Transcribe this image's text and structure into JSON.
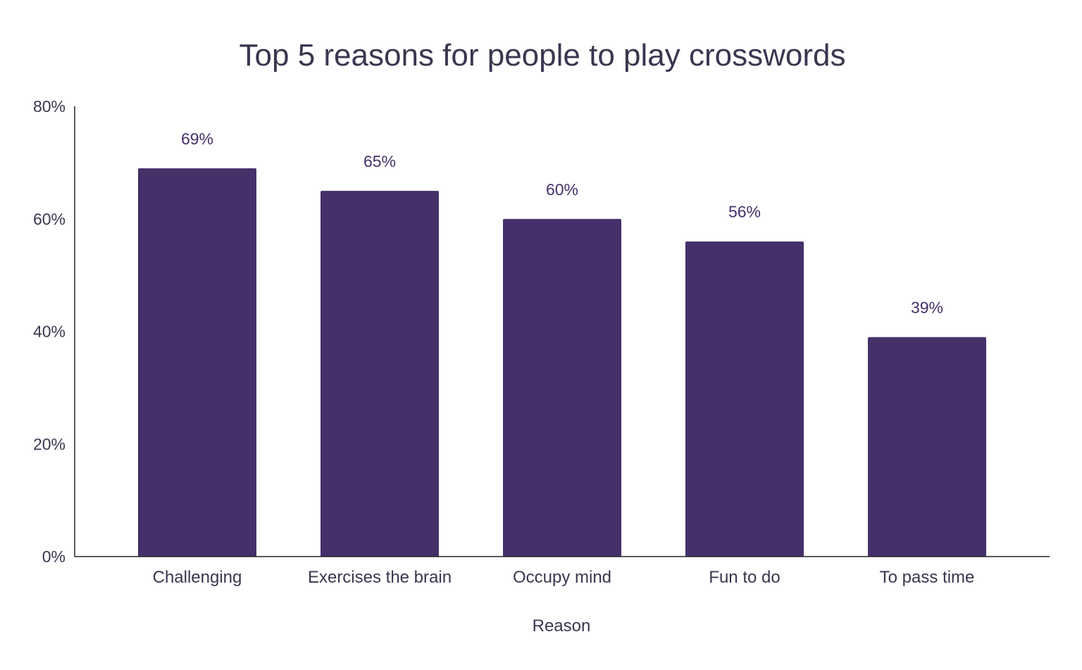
{
  "chart_data": {
    "type": "bar",
    "title": "Top 5 reasons for people to play crosswords",
    "xlabel": "Reason",
    "ylabel": "",
    "categories": [
      "Challenging",
      "Exercises the brain",
      "Occupy mind",
      "Fun to do",
      "To pass time"
    ],
    "values": [
      69,
      65,
      60,
      56,
      39
    ],
    "value_labels": [
      "69%",
      "65%",
      "60%",
      "56%",
      "39%"
    ],
    "ylim": [
      0,
      80
    ],
    "yticks": [
      0,
      20,
      40,
      60,
      80
    ],
    "ytick_labels": [
      "0%",
      "20%",
      "40%",
      "60%",
      "80%"
    ],
    "grid": false,
    "legend": "none",
    "colors": {
      "bar": "#45306a",
      "text": "#3b3650",
      "data_label": "#45306a",
      "axis": "#222222"
    }
  }
}
